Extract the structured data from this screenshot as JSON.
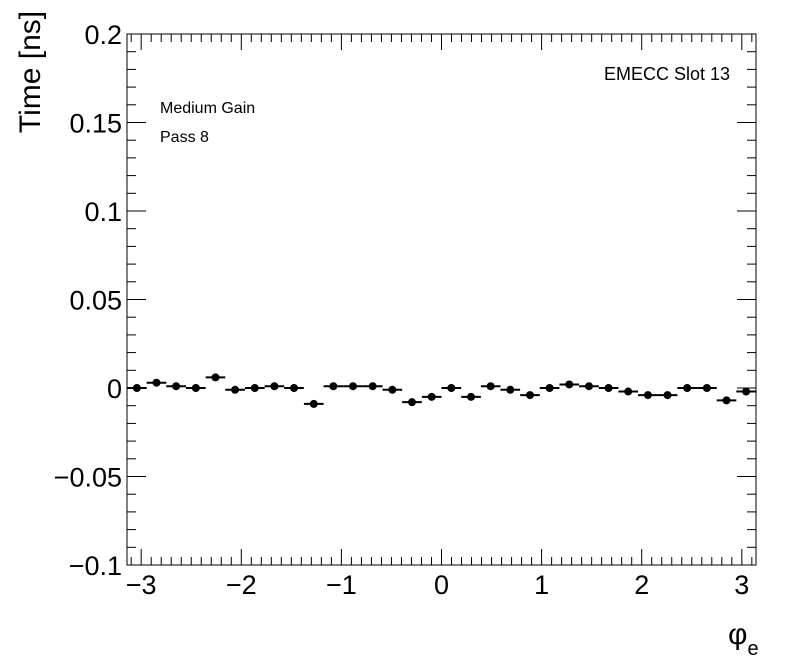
{
  "chart_data": {
    "type": "scatter",
    "title": "",
    "xlabel_main": "φ",
    "xlabel_sub": "e",
    "ylabel": "Time [ns]",
    "xlim": [
      -3.1416,
      3.1416
    ],
    "ylim": [
      -0.1,
      0.2
    ],
    "xticks": [
      -3,
      -2,
      -1,
      0,
      1,
      2,
      3
    ],
    "xtick_labels": [
      "−3",
      "−2",
      "−1",
      "0",
      "1",
      "2",
      "3"
    ],
    "yticks": [
      -0.1,
      -0.05,
      0,
      0.05,
      0.1,
      0.15,
      0.2
    ],
    "ytick_labels": [
      "−0.1",
      "−0.05",
      "0",
      "0.05",
      "0.1",
      "0.15",
      "0.2"
    ],
    "annotations": {
      "slot": "EMECC Slot 13",
      "gain": "Medium Gain",
      "pass": "Pass 8"
    },
    "grid": false,
    "series": [
      {
        "x": [
          -3.043,
          -2.847,
          -2.651,
          -2.454,
          -2.258,
          -2.062,
          -1.865,
          -1.669,
          -1.473,
          -1.276,
          -1.08,
          -0.884,
          -0.687,
          -0.491,
          -0.295,
          -0.098,
          0.098,
          0.295,
          0.491,
          0.687,
          0.884,
          1.08,
          1.276,
          1.473,
          1.669,
          1.865,
          2.062,
          2.258,
          2.454,
          2.651,
          2.847,
          3.043
        ],
        "y": [
          0.0,
          0.003,
          0.001,
          0.0,
          0.006,
          -0.001,
          0.0,
          0.001,
          0.0,
          -0.009,
          0.001,
          0.001,
          0.001,
          -0.001,
          -0.008,
          -0.005,
          0.0,
          -0.005,
          0.001,
          -0.001,
          -0.004,
          0.0,
          0.002,
          0.001,
          0.0,
          -0.002,
          -0.004,
          -0.004,
          0.0,
          0.0,
          -0.007,
          -0.002
        ],
        "xerr": 0.0982,
        "marker": "circle",
        "color": "#000000"
      }
    ]
  }
}
